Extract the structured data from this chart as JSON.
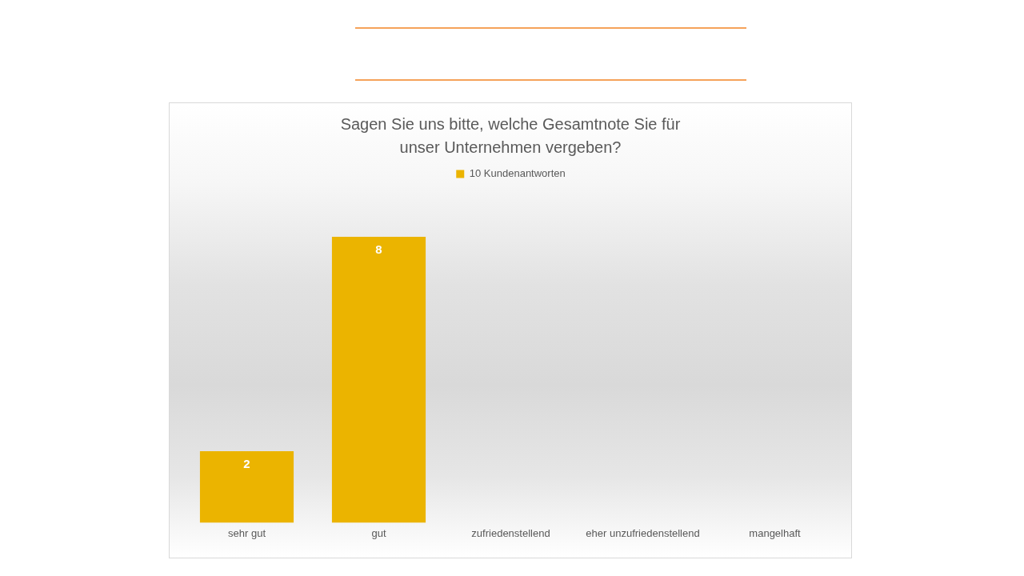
{
  "chart_data": {
    "type": "bar",
    "title": "Sagen Sie uns bitte, welche Gesamtnote Sie für unser Unternehmen vergeben?",
    "categories": [
      "sehr gut",
      "gut",
      "zufriedenstellend",
      "eher unzufriedenstellend",
      "mangelhaft"
    ],
    "series": [
      {
        "name": "10 Kundenantworten",
        "color": "#ebb400",
        "values": [
          2,
          8,
          0,
          0,
          0
        ],
        "value_labels": [
          "2",
          "8",
          null,
          null,
          null
        ]
      }
    ],
    "legend": "top"
  }
}
